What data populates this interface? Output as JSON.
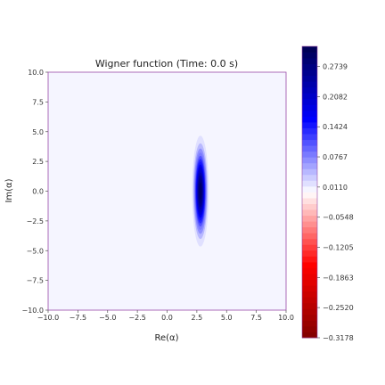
{
  "chart_data": {
    "type": "heatmap",
    "title": "Wigner function (Time: 0.0 s)",
    "xlabel": "Re(α)",
    "ylabel": "Im(α)",
    "xlim": [
      -10.0,
      10.0
    ],
    "ylim": [
      -10.0,
      10.0
    ],
    "x_ticks": [
      "−10.0",
      "−7.5",
      "−5.0",
      "−2.5",
      "0.0",
      "2.5",
      "5.0",
      "7.5",
      "10.0"
    ],
    "x_tick_values": [
      -10.0,
      -7.5,
      -5.0,
      -2.5,
      0.0,
      2.5,
      5.0,
      7.5,
      10.0
    ],
    "y_ticks": [
      "10.0",
      "7.5",
      "5.0",
      "2.5",
      "0.0",
      "−2.5",
      "−5.0",
      "−7.5",
      "−10.0"
    ],
    "y_tick_values": [
      10.0,
      7.5,
      5.0,
      2.5,
      0.0,
      -2.5,
      -5.0,
      -7.5,
      -10.0
    ],
    "distribution": {
      "shape": "squeezed gaussian",
      "center": [
        2.8,
        0.0
      ],
      "width_re": 0.3,
      "width_im": 2.0,
      "peak_value": 0.3178
    },
    "colorbar": {
      "min": -0.3178,
      "max": 0.3178,
      "levels": 50,
      "tick_values": [
        0.2739,
        0.2082,
        0.1424,
        0.0767,
        0.011,
        -0.0548,
        -0.1205,
        -0.1863,
        -0.252,
        -0.3178
      ],
      "tick_labels": [
        "0.2739",
        "0.2082",
        "0.1424",
        "0.0767",
        "0.0110",
        "−0.0548",
        "−0.1205",
        "−0.1863",
        "−0.2520",
        "−0.3178"
      ],
      "colormap": "seismic",
      "colors": {
        "negative_end": "#800000",
        "mid": "#ffffff",
        "positive_end": "#000050"
      }
    },
    "grid": false
  }
}
